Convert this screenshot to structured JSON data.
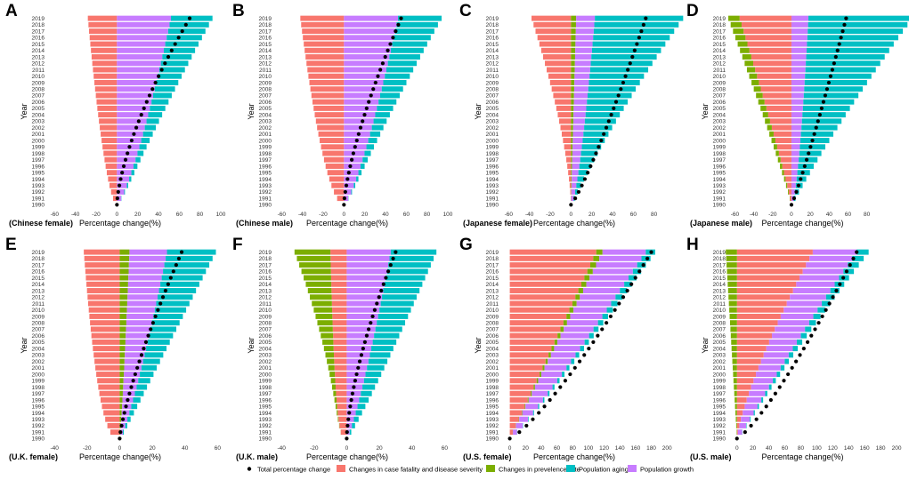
{
  "legend": {
    "items": [
      {
        "key": "total",
        "label": "Total percentage change",
        "kind": "dot",
        "color": "#000000"
      },
      {
        "key": "fatality",
        "label": "Changes in case fatality and disease severity",
        "kind": "box",
        "color": "#F8766D"
      },
      {
        "key": "prevalence",
        "label": "Changes in prevelence rate",
        "kind": "box",
        "color": "#7CAE00"
      },
      {
        "key": "aging",
        "label": "Population aging",
        "kind": "box",
        "color": "#00BFC4"
      },
      {
        "key": "growth",
        "label": "Population growth",
        "kind": "box",
        "color": "#C77CFF"
      }
    ]
  },
  "chart_data": [
    {
      "type": "bar",
      "panel": "A",
      "caption": "(Chinese female)",
      "xlabel": "Percentage change(%)",
      "ylabel": "Year",
      "years": [
        1990,
        2019
      ],
      "xlim": [
        -68,
        100
      ],
      "xticks": [
        -60,
        -40,
        -20,
        0,
        20,
        40,
        60,
        80,
        100
      ],
      "end": {
        "fatality": -28,
        "prevalence": 0,
        "growth": 52,
        "aging": 40,
        "total": 70
      },
      "shape": {
        "fatality": 0.6,
        "prevalence": 1,
        "growth": 0.75,
        "aging": 1.5,
        "total": 1.5
      }
    },
    {
      "type": "bar",
      "panel": "B",
      "caption": "(Chinese male)",
      "xlabel": "Percentage change(%)",
      "ylabel": "Year",
      "years": [
        1990,
        2019
      ],
      "xlim": [
        -68,
        100
      ],
      "xticks": [
        -60,
        -40,
        -20,
        0,
        20,
        40,
        60,
        80,
        100
      ],
      "end": {
        "fatality": -42,
        "prevalence": 0,
        "growth": 52,
        "aging": 42,
        "total": 55
      },
      "shape": {
        "fatality": 0.55,
        "prevalence": 1,
        "growth": 0.75,
        "aging": 1.5,
        "total": 1.4
      }
    },
    {
      "type": "bar",
      "panel": "C",
      "caption": "(Japanese female)",
      "xlabel": "Percentage change(%)",
      "ylabel": "Year",
      "years": [
        1990,
        2019
      ],
      "xlim": [
        -68,
        100
      ],
      "xticks": [
        -60,
        -40,
        -20,
        0,
        20,
        40,
        60,
        80
      ],
      "end": {
        "fatality": -38,
        "prevalence": 5,
        "growth": 18,
        "aging": 85,
        "total": 72
      },
      "shape": {
        "fatality": 1.5,
        "prevalence": 1,
        "growth": 0.6,
        "aging": 1.3,
        "total": 0.85
      }
    },
    {
      "type": "bar",
      "panel": "D",
      "caption": "(Japanese male)",
      "xlabel": "Percentage change(%)",
      "ylabel": "Year",
      "years": [
        1990,
        2019
      ],
      "xlim": [
        -68,
        120
      ],
      "xticks": [
        -60,
        -40,
        -20,
        0,
        20,
        40,
        60,
        80
      ],
      "end": {
        "fatality": -55,
        "prevalence": -12,
        "growth": 18,
        "aging": 110,
        "total": 58
      },
      "shape": {
        "fatality": 1.1,
        "prevalence": 1,
        "growth": 0.6,
        "aging": 1.2,
        "total": 0.9
      }
    },
    {
      "type": "bar",
      "panel": "E",
      "caption": "(U.K. female)",
      "xlabel": "Percentage change(%)",
      "ylabel": "Year",
      "years": [
        1990,
        2019
      ],
      "xlim": [
        -45,
        62
      ],
      "xticks": [
        -40,
        -20,
        0,
        20,
        40,
        60
      ],
      "end": {
        "fatality": -22,
        "prevalence": 6,
        "growth": 23,
        "aging": 30,
        "total": 38
      },
      "shape": {
        "fatality": 0.4,
        "prevalence": 0.8,
        "growth": 0.8,
        "aging": 1.2,
        "total": 1.3
      }
    },
    {
      "type": "bar",
      "panel": "F",
      "caption": "(U.K. male)",
      "xlabel": "Percentage change(%)",
      "ylabel": "Year",
      "years": [
        1990,
        2019
      ],
      "xlim": [
        -45,
        62
      ],
      "xticks": [
        -40,
        -20,
        0,
        20,
        40,
        60
      ],
      "end": {
        "fatality": -10,
        "prevalence": -22,
        "growth": 27,
        "aging": 28,
        "total": 30
      },
      "shape": {
        "fatality": 0.3,
        "prevalence": 1.8,
        "growth": 0.8,
        "aging": 1.0,
        "total": 1.5
      }
    },
    {
      "type": "bar",
      "panel": "G",
      "caption": "(U.S. female)",
      "xlabel": "Percentage change(%)",
      "ylabel": "Year",
      "years": [
        1990,
        2019
      ],
      "xlim": [
        -12,
        210
      ],
      "xticks": [
        0,
        20,
        40,
        60,
        80,
        100,
        120,
        140,
        160,
        180,
        200
      ],
      "end": {
        "fatality": 110,
        "prevalence": 8,
        "growth": 55,
        "aging": 12,
        "total": 180
      },
      "shape": {
        "fatality": 1.0,
        "prevalence": 1.2,
        "growth": 0.7,
        "aging": 1.2,
        "total": 0.8
      }
    },
    {
      "type": "bar",
      "panel": "H",
      "caption": "(U.S. male)",
      "xlabel": "Percentage change(%)",
      "ylabel": "Year",
      "years": [
        1990,
        2019
      ],
      "xlim": [
        -12,
        210
      ],
      "xticks": [
        0,
        20,
        40,
        60,
        80,
        100,
        120,
        140,
        160,
        180,
        200
      ],
      "end": {
        "fatality": 95,
        "prevalence": -14,
        "growth": 55,
        "aging": 15,
        "total": 150
      },
      "shape": {
        "fatality": 1.3,
        "prevalence": 1.0,
        "growth": 0.7,
        "aging": 1.2,
        "total": 0.8
      }
    }
  ]
}
